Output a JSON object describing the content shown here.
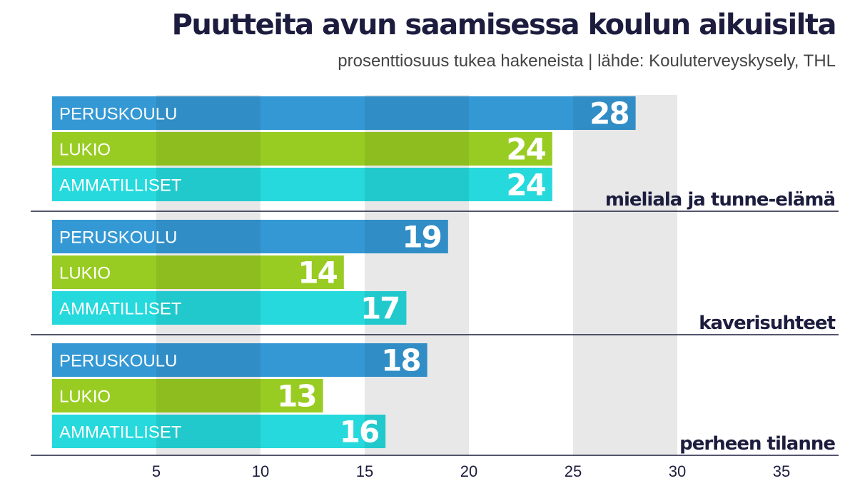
{
  "chart_data": {
    "type": "bar",
    "orientation": "horizontal",
    "title": "Puutteita avun saamisessa koulun aikuisilta",
    "subtitle": "prosenttiosuus tukea hakeneista | lähde: Kouluterveyskysely, THL",
    "xlim": [
      0,
      36
    ],
    "xticks": [
      5,
      10,
      15,
      20,
      25,
      30,
      35
    ],
    "grid": "alternating vertical bands",
    "groups": [
      {
        "label": "mieliala ja tunne-elämä",
        "bars": [
          {
            "name": "PERUSKOULU",
            "value": 28
          },
          {
            "name": "LUKIO",
            "value": 24
          },
          {
            "name": "AMMATILLISET",
            "value": 24
          }
        ]
      },
      {
        "label": "kaverisuhteet",
        "bars": [
          {
            "name": "PERUSKOULU",
            "value": 19
          },
          {
            "name": "LUKIO",
            "value": 14
          },
          {
            "name": "AMMATILLISET",
            "value": 17
          }
        ]
      },
      {
        "label": "perheen tilanne",
        "bars": [
          {
            "name": "PERUSKOULU",
            "value": 18
          },
          {
            "name": "LUKIO",
            "value": 13
          },
          {
            "name": "AMMATILLISET",
            "value": 16
          }
        ]
      }
    ],
    "colors": {
      "PERUSKOULU": "#3498d4",
      "LUKIO": "#99cc22",
      "AMMATILLISET": "#25d9dc",
      "band": "#e8e8e8",
      "text_dark": "#1c1d3e"
    }
  }
}
